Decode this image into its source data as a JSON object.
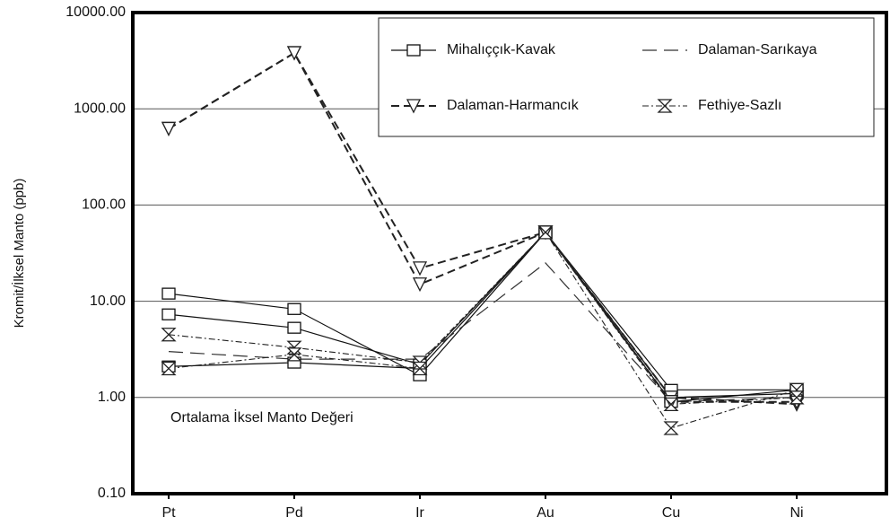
{
  "chart_data": {
    "type": "line",
    "ylabel": "Kromit/İlksel Manto (ppb)",
    "annotation": "Ortalama İksel Manto Değeri",
    "categories": [
      "Pt",
      "Pd",
      "Ir",
      "Au",
      "Cu",
      "Ni"
    ],
    "log_scale": true,
    "ylim": [
      0.1,
      10000
    ],
    "yticks": [
      {
        "value": 0.1,
        "label": "0.10"
      },
      {
        "value": 1,
        "label": "1.00"
      },
      {
        "value": 10,
        "label": "10.00"
      },
      {
        "value": 100,
        "label": "100.00"
      },
      {
        "value": 1000,
        "label": "1000.00"
      },
      {
        "value": 10000,
        "label": "10000.00"
      }
    ],
    "grid": true,
    "legend": "upper right",
    "series": [
      {
        "name": "Mihalıççık-Kavak",
        "color": "#111111",
        "marker": "square",
        "line_style": "solid",
        "samples": [
          [
            12,
            8.3,
            1.7,
            52,
            1.2,
            1.2
          ],
          [
            7.3,
            5.3,
            2.2,
            52,
            1.0,
            1.1
          ],
          [
            2.1,
            2.3,
            2.0,
            52,
            0.9,
            1.2
          ]
        ]
      },
      {
        "name": "Dalaman-Sarıkaya",
        "color": "#333333",
        "marker": "none",
        "line_style": "longdash",
        "samples": [
          [
            3,
            2.5,
            2.5,
            25,
            0.9,
            1.0
          ]
        ]
      },
      {
        "name": "Dalaman-Harmancık",
        "color": "#222222",
        "marker": "triangle-down",
        "line_style": "dashed",
        "samples": [
          [
            620,
            3800,
            22,
            52,
            1.0,
            0.85
          ],
          [
            620,
            3800,
            15,
            52,
            0.9,
            0.9
          ]
        ]
      },
      {
        "name": "Fethiye-Sazlı",
        "color": "#222222",
        "marker": "hourglass",
        "line_style": "dashdot",
        "samples": [
          [
            4.5,
            3.3,
            2.3,
            52,
            0.48,
            1.2
          ],
          [
            2.0,
            2.8,
            2.0,
            52,
            0.85,
            1.0
          ]
        ]
      }
    ]
  }
}
